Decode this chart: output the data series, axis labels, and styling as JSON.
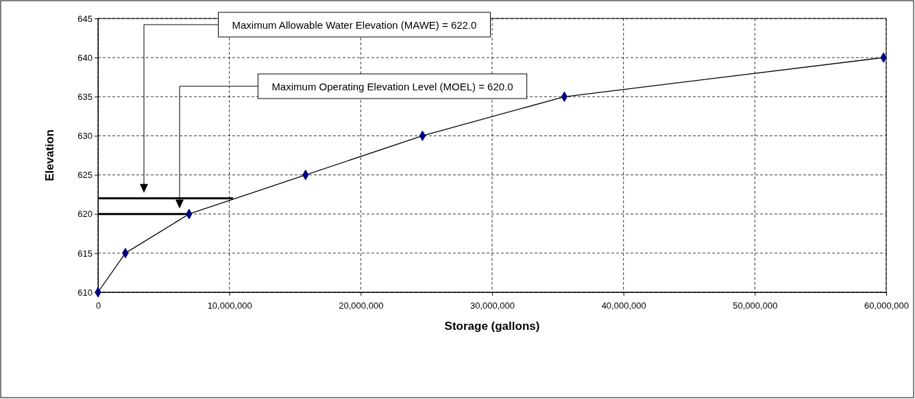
{
  "chart_data": {
    "type": "line",
    "xlabel": "Storage (gallons)",
    "ylabel": "Elevation",
    "x": [
      0,
      2080000,
      6930000,
      15800000,
      24700000,
      35500000,
      59800000
    ],
    "series": [
      {
        "color": "#000000",
        "values": [
          610,
          615,
          620,
          625,
          630,
          635,
          640
        ]
      }
    ],
    "marker": "diamond",
    "line_style": "solid",
    "grid": true,
    "xlim": [
      0,
      60000000
    ],
    "ylim": [
      610,
      645
    ],
    "xticks": [
      {
        "value": 0,
        "label": "0"
      },
      {
        "value": 10000000,
        "label": "10,000,000"
      },
      {
        "value": 20000000,
        "label": "20,000,000"
      },
      {
        "value": 30000000,
        "label": "30,000,000"
      },
      {
        "value": 40000000,
        "label": "40,000,000"
      },
      {
        "value": 50000000,
        "label": "50,000,000"
      },
      {
        "value": 60000000,
        "label": "60,000,000"
      }
    ],
    "yticks": [
      610,
      615,
      620,
      625,
      630,
      635,
      640,
      645
    ],
    "ref_lines": [
      {
        "axis": "y",
        "value": 622,
        "color": "#000000"
      },
      {
        "axis": "y",
        "value": 620,
        "color": "#000000"
      }
    ],
    "annotations": [
      "Maximum Allowable Water Elevation (MAWE) = 622.0",
      "Maximum Operating Elevation Level (MOEL) = 620.0"
    ]
  }
}
